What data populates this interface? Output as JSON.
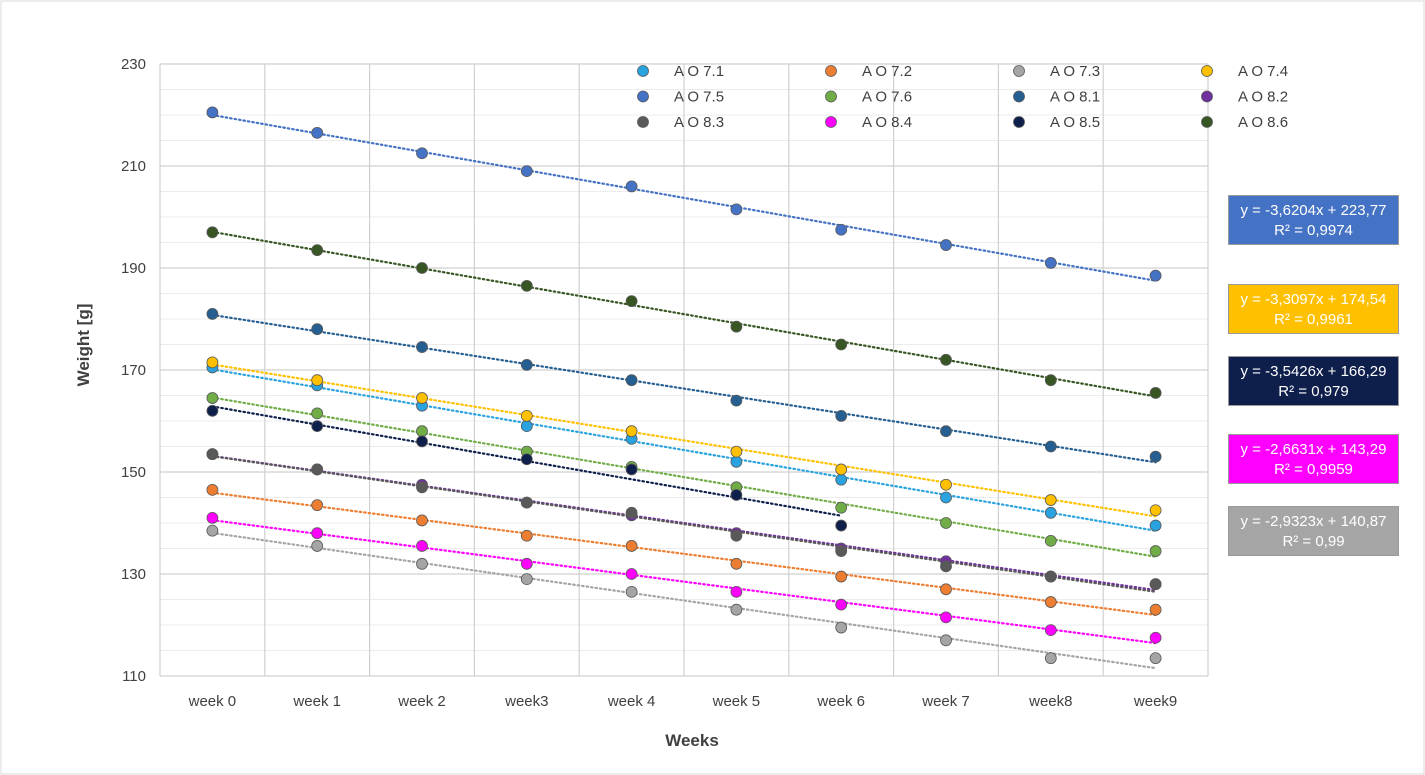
{
  "chart_data": {
    "type": "scatter",
    "title": "",
    "xlabel": "Weeks",
    "ylabel": "Weight [g]",
    "categories": [
      "week 0",
      "week 1",
      "week 2",
      "week3",
      "week 4",
      "week 5",
      "week 6",
      "week 7",
      "week8",
      "week9"
    ],
    "ylim": [
      110,
      230
    ],
    "yticks": [
      110,
      130,
      150,
      170,
      190,
      210,
      230
    ],
    "grid": true,
    "legend": "top",
    "trendlines": "linear, dotted",
    "series": [
      {
        "name": "A O 7.1",
        "color": "#29a3e0",
        "values": [
          170.5,
          167,
          163,
          159,
          156.5,
          152,
          148.5,
          145,
          142,
          139.5
        ]
      },
      {
        "name": "A O 7.2",
        "color": "#ed7d31",
        "values": [
          146.5,
          143.5,
          140.5,
          137.5,
          135.5,
          132,
          129.5,
          127,
          124.5,
          123
        ]
      },
      {
        "name": "A O 7.3",
        "color": "#a5a5a5",
        "values": [
          138.5,
          135.5,
          132,
          129,
          126.5,
          123,
          119.5,
          117,
          113.5,
          113.5
        ]
      },
      {
        "name": "A O 7.4",
        "color": "#ffc000",
        "values": [
          171.5,
          168,
          164.5,
          161,
          158,
          154,
          150.5,
          147.5,
          144.5,
          142.5
        ]
      },
      {
        "name": "A O 7.5",
        "color": "#4472c4",
        "values": [
          220.5,
          216.5,
          212.5,
          209,
          206,
          201.5,
          197.5,
          194.5,
          191,
          188.5
        ]
      },
      {
        "name": "A O 7.6",
        "color": "#70ad47",
        "values": [
          164.5,
          161.5,
          158,
          154,
          151,
          147,
          143,
          140,
          136.5,
          134.5
        ]
      },
      {
        "name": "A O 8.1",
        "color": "#255e91",
        "values": [
          181,
          178,
          174.5,
          171,
          168,
          164,
          161,
          158,
          155,
          153
        ]
      },
      {
        "name": "A O 8.2",
        "color": "#7030a0",
        "values": [
          153.5,
          150.5,
          147.5,
          144,
          141.5,
          138,
          135,
          132.5,
          129.5,
          128
        ]
      },
      {
        "name": "A O 8.3",
        "color": "#595959",
        "values": [
          153.5,
          150.5,
          147,
          144,
          142,
          137.5,
          134.5,
          131.5,
          129.5,
          128
        ]
      },
      {
        "name": "A O 8.4",
        "color": "#ff00ff",
        "values": [
          141,
          138,
          135.5,
          132,
          130,
          126.5,
          124,
          121.5,
          119,
          117.5
        ]
      },
      {
        "name": "A O 8.5",
        "color": "#0f1f4c",
        "values": [
          162,
          159,
          156,
          152.5,
          150.5,
          145.5,
          139.5,
          null,
          null,
          null
        ]
      },
      {
        "name": "A O 8.6",
        "color": "#375623",
        "values": [
          197,
          193.5,
          190,
          186.5,
          183.5,
          178.5,
          175,
          172,
          168,
          165.5
        ]
      }
    ],
    "annotations": [
      {
        "equation": "y = -3,6204x + 223,77",
        "r2": "R² = 0,9974",
        "bg": "#4472c4"
      },
      {
        "equation": "y = -3,3097x + 174,54",
        "r2": "R² = 0,9961",
        "bg": "#ffc000"
      },
      {
        "equation": "y = -3,5426x + 166,29",
        "r2": "R² = 0,979",
        "bg": "#0f1f4c"
      },
      {
        "equation": "y = -2,6631x + 143,29",
        "r2": "R² = 0,9959",
        "bg": "#ff00ff"
      },
      {
        "equation": "y = -2,9323x + 140,87",
        "r2": "R² = 0,99",
        "bg": "#a5a5a5"
      }
    ]
  }
}
